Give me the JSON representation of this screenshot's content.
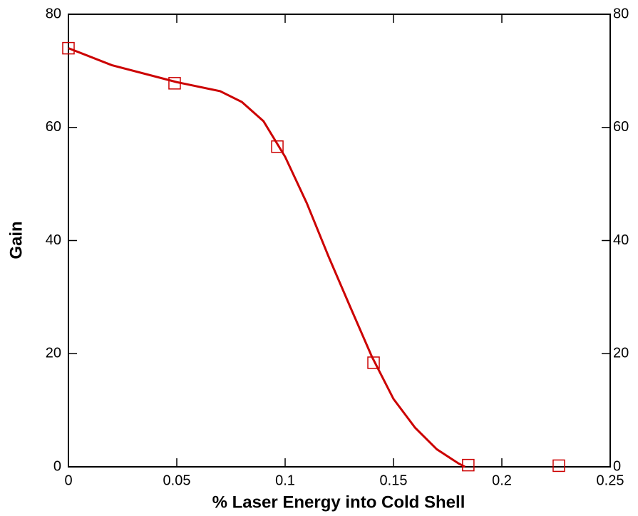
{
  "chart_data": {
    "type": "line",
    "x_label": "% Laser Energy into Cold Shell",
    "y_label": "Gain",
    "xlim": [
      0,
      0.25
    ],
    "xticks": [
      0,
      0.05,
      0.1,
      0.15,
      0.2,
      0.25
    ],
    "ylim": [
      0,
      80
    ],
    "yticks": [
      0,
      20,
      40,
      60,
      80
    ],
    "right_axis_labels": true,
    "series": [
      {
        "color": "#cc0000",
        "marker": "none",
        "x": [
          0,
          0.02,
          0.05,
          0.07,
          0.08,
          0.09,
          0.1,
          0.11,
          0.12,
          0.13,
          0.14,
          0.15,
          0.16,
          0.17,
          0.18,
          0.183
        ],
        "values": [
          74,
          71,
          68,
          66.4,
          64.5,
          61.1,
          54.8,
          46.6,
          37.2,
          28.3,
          19.5,
          12.0,
          6.9,
          3.1,
          0.6,
          0
        ]
      },
      {
        "color": "#cc0000",
        "marker": "square",
        "line": false,
        "x": [
          0,
          0.049,
          0.0964,
          0.1408,
          0.1845,
          0.2263
        ],
        "values": [
          74,
          67.8,
          56.6,
          18.4,
          0.3,
          0.2
        ]
      }
    ]
  }
}
